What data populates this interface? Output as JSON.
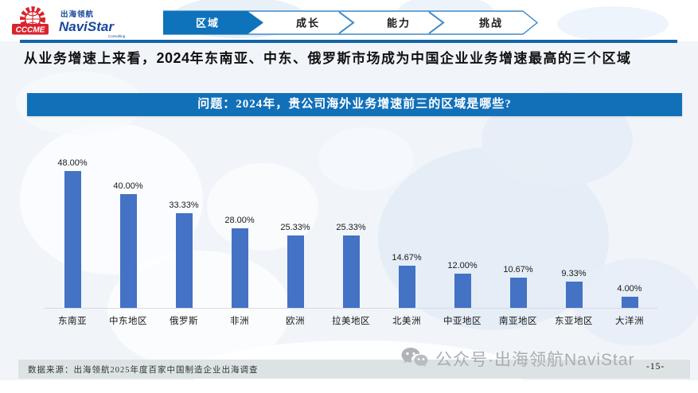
{
  "brand": {
    "cccme_label": "CCCME",
    "navistar_cn": "出海领航",
    "navistar_en": "NaviStar",
    "navistar_sub": "Consulting"
  },
  "nav": {
    "tabs": [
      {
        "label": "区域",
        "active": true
      },
      {
        "label": "成长",
        "active": false
      },
      {
        "label": "能力",
        "active": false
      },
      {
        "label": "挑战",
        "active": false
      }
    ]
  },
  "title": {
    "prefix": "从业务增速上来看，",
    "year": "2024",
    "suffix": "年东南亚、中东、俄罗斯市场成为中国企业业务增速最高的三个区域"
  },
  "question_banner": "问题：2024年，贵公司海外业务增速前三的区域是哪些?",
  "chart_data": {
    "type": "bar",
    "categories": [
      "东南亚",
      "中东地区",
      "俄罗斯",
      "非洲",
      "欧洲",
      "拉美地区",
      "北美洲",
      "中亚地区",
      "南亚地区",
      "东亚地区",
      "大洋洲"
    ],
    "values": [
      48.0,
      40.0,
      33.33,
      28.0,
      25.33,
      25.33,
      14.67,
      12.0,
      10.67,
      9.33,
      4.0
    ],
    "labels": [
      "48.00%",
      "40.00%",
      "33.33%",
      "28.00%",
      "25.33%",
      "25.33%",
      "14.67%",
      "12.00%",
      "10.67%",
      "9.33%",
      "4.00%"
    ],
    "title": "",
    "xlabel": "",
    "ylabel": "",
    "ylim": [
      0,
      50
    ],
    "grid": false,
    "legend": false,
    "bar_color": "#4472c4"
  },
  "footer": {
    "source": "数据来源：出海领航2025年度百家中国制造企业出海调查",
    "watermark": "公众号·出海领航NaviStar",
    "page": "-15-"
  },
  "colors": {
    "accent_blue": "#1270b8",
    "bar_blue": "#4472c4",
    "header_line_blue": "#1465a8",
    "logo_red": "#d9232e",
    "logo_blue": "#17499c",
    "band_gray": "#dde3e4",
    "watermark_gray": "#a9adb3"
  }
}
